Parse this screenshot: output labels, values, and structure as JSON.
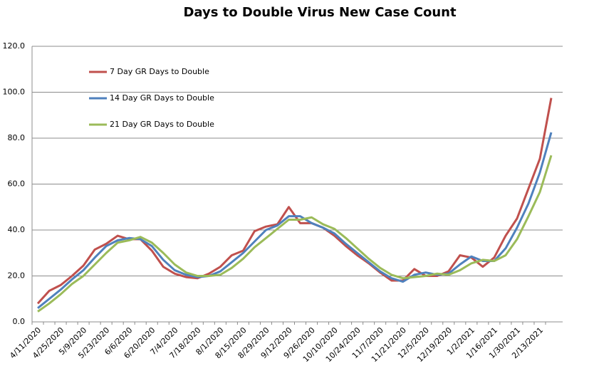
{
  "chart_data": {
    "type": "line",
    "title": "Days to Double Virus New Case Count",
    "categories": [
      "4/11/2020",
      null,
      "4/25/2020",
      null,
      "5/9/2020",
      null,
      "5/23/2020",
      null,
      "6/6/2020",
      null,
      "6/20/2020",
      null,
      "7/4/2020",
      null,
      "7/18/2020",
      null,
      "8/1/2020",
      null,
      "8/15/2020",
      null,
      "8/29/2020",
      null,
      "9/12/2020",
      null,
      "9/26/2020",
      null,
      "10/10/2020",
      null,
      "10/24/2020",
      null,
      "11/7/2020",
      null,
      "11/21/2020",
      null,
      "12/5/2020",
      null,
      "12/19/2020",
      null,
      "1/2/2021",
      null,
      "1/16/2021",
      null,
      "1/30/2021",
      null,
      "2/13/2021",
      null
    ],
    "series": [
      {
        "name": "7 Day GR Days to Double",
        "color": "#c0504d",
        "values": [
          8,
          13.5,
          16,
          20,
          24.5,
          31.5,
          34,
          37.5,
          36,
          36,
          31,
          24,
          21,
          19.5,
          19,
          21,
          24,
          29,
          31,
          39.5,
          41.5,
          42.5,
          50,
          43,
          43,
          41,
          37.5,
          33,
          29,
          25.5,
          21.5,
          18,
          18,
          23,
          20,
          20,
          22,
          29,
          28,
          24,
          28,
          37.5,
          45,
          58,
          71,
          97.5
        ]
      },
      {
        "name": "14 Day GR Days to Double",
        "color": "#4f81bd",
        "values": [
          6,
          10,
          14,
          18.5,
          22.5,
          28,
          33,
          35.5,
          36.5,
          36,
          33,
          27,
          22.5,
          20.5,
          19.5,
          20,
          22,
          26,
          30,
          35,
          40,
          42,
          46,
          46,
          43,
          41,
          38.5,
          34,
          30,
          26,
          22,
          19,
          17.5,
          20.5,
          21.5,
          20.5,
          21,
          25,
          28.5,
          26.5,
          26.5,
          32,
          41,
          51.5,
          65,
          82.5
        ]
      },
      {
        "name": "21 Day GR Days to Double",
        "color": "#9bbb59",
        "values": [
          4.5,
          8,
          12,
          16.5,
          20,
          25,
          30,
          34.5,
          35.5,
          37,
          34.5,
          30,
          25,
          21.5,
          20,
          20,
          20.5,
          23.5,
          27.5,
          32.5,
          36.5,
          40.5,
          44.5,
          44.5,
          45.5,
          42.5,
          40.5,
          36.5,
          32,
          27.5,
          23.5,
          20.5,
          19,
          19.5,
          20,
          21,
          20.5,
          22.5,
          25.5,
          27,
          26.5,
          29,
          36,
          46,
          56.5,
          72.5
        ]
      }
    ],
    "ylim": [
      0,
      120
    ],
    "yticks": [
      {
        "value": 0,
        "label": "0.0"
      },
      {
        "value": 20,
        "label": "20.0"
      },
      {
        "value": 40,
        "label": "40.0"
      },
      {
        "value": 60,
        "label": "60.0"
      },
      {
        "value": 80,
        "label": "80.0"
      },
      {
        "value": 100,
        "label": "100.0"
      },
      {
        "value": 120,
        "label": "120.0"
      }
    ],
    "grid": true,
    "legend": "upper left"
  }
}
